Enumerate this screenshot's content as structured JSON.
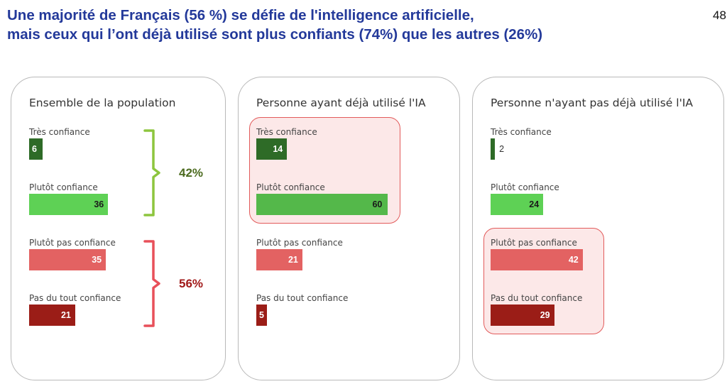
{
  "header": {
    "title_line1": "Une majorité de Français (56 %) se défie de l'intelligence artificielle,",
    "title_line2": "mais ceux qui l’ont déjà utilisé sont plus confiants (74%) que les autres (26%)",
    "page_number": "48"
  },
  "colors": {
    "tres_confiance": "#2e6b27",
    "plutot_confiance": "#5ed155",
    "plutot_confiance_alt": "#54b84a",
    "plutot_pas_confiance": "#e36262",
    "pas_du_tout_confiance": "#9b1d17",
    "group_positive": "#8dc53e",
    "group_negative": "#e8505a",
    "pct_positive_text": "#4c6b1f",
    "pct_negative_text": "#a11a1a",
    "title": "#23399a"
  },
  "chart_data": [
    {
      "type": "bar",
      "orientation": "horizontal",
      "title": "Ensemble de la population",
      "categories": [
        "Très confiance",
        "Plutôt confiance",
        "Plutôt pas confiance",
        "Pas du tout confiance"
      ],
      "values": [
        6,
        36,
        35,
        21
      ],
      "groups": [
        {
          "label": "42%",
          "members": [
            "Très confiance",
            "Plutôt confiance"
          ]
        },
        {
          "label": "56%",
          "members": [
            "Plutôt pas confiance",
            "Pas du tout confiance"
          ]
        }
      ]
    },
    {
      "type": "bar",
      "orientation": "horizontal",
      "title": "Personne ayant déjà utilisé l'IA",
      "categories": [
        "Très confiance",
        "Plutôt confiance",
        "Plutôt pas confiance",
        "Pas du tout confiance"
      ],
      "values": [
        14,
        60,
        21,
        5
      ],
      "highlighted": [
        "Très confiance",
        "Plutôt confiance"
      ]
    },
    {
      "type": "bar",
      "orientation": "horizontal",
      "title": "Personne n'ayant pas déjà utilisé l'IA",
      "categories": [
        "Très confiance",
        "Plutôt confiance",
        "Plutôt pas confiance",
        "Pas du tout confiance"
      ],
      "values": [
        2,
        24,
        42,
        29
      ],
      "highlighted": [
        "Plutôt pas confiance",
        "Pas du tout confiance"
      ]
    }
  ]
}
